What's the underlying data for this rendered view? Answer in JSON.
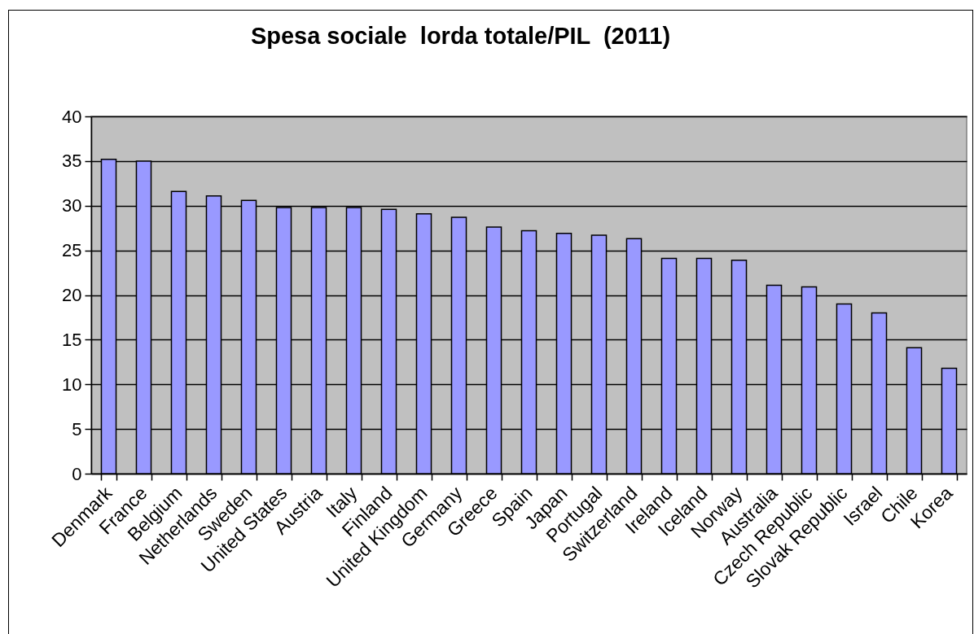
{
  "chart_data": {
    "type": "bar",
    "title": "Spesa sociale  lorda totale/PIL  (2011)",
    "categories": [
      "Denmark",
      "France",
      "Belgium",
      "Netherlands",
      "Sweden",
      "United States",
      "Austria",
      "Italy",
      "Finland",
      "United Kingdom",
      "Germany",
      "Greece",
      "Spain",
      "Japan",
      "Portugal",
      "Switzerland",
      "Ireland",
      "Iceland",
      "Norway",
      "Australia",
      "Czech Republic",
      "Slovak Republic",
      "Israel",
      "Chile",
      "Korea"
    ],
    "values": [
      35.2,
      35.0,
      31.6,
      31.1,
      30.6,
      29.8,
      29.8,
      29.8,
      29.6,
      29.1,
      28.7,
      27.6,
      27.2,
      26.9,
      26.7,
      26.3,
      24.1,
      24.1,
      23.9,
      21.1,
      20.9,
      19.0,
      18.0,
      14.1,
      11.8
    ],
    "color": "#9999ff",
    "ylim": [
      0,
      40
    ],
    "yticks": [
      0,
      5,
      10,
      15,
      20,
      25,
      30,
      35,
      40
    ],
    "grid": "y"
  }
}
